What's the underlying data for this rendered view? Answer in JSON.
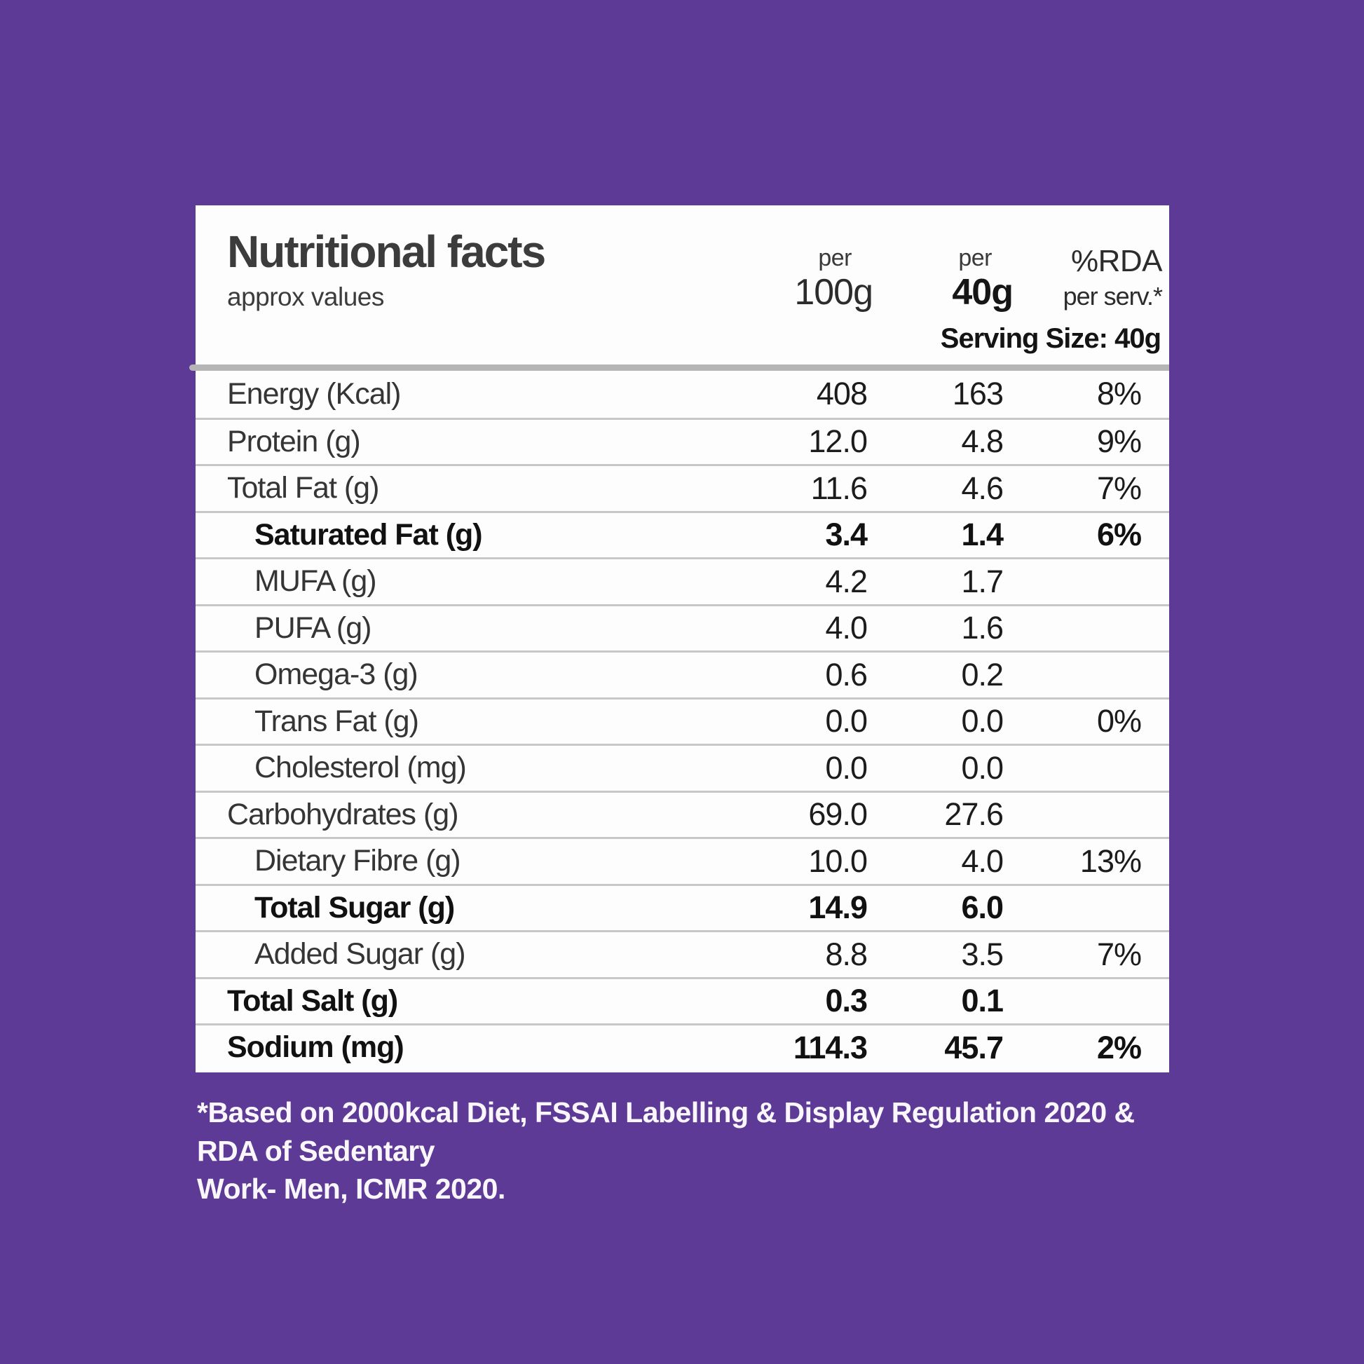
{
  "colors": {
    "background_purple": "#5d3a96",
    "card_white": "#fdfdfd",
    "thin_divider_gray": "#c7c7c7",
    "thick_divider_gray": "#b5b5b5",
    "text_dark_gray": "#3c3c3c",
    "text_black": "#111111",
    "footer_white": "#f9f7fc"
  },
  "header": {
    "title": "Nutritional facts",
    "subtitle": "approx values",
    "columns": [
      {
        "line1": "per",
        "line2": "100g"
      },
      {
        "line1": "per",
        "line2": "40g"
      },
      {
        "line1": "%RDA",
        "line2": "per serv.*"
      }
    ],
    "serving_size": "Serving Size: 40g"
  },
  "table": {
    "rows": [
      {
        "label": "Energy (Kcal)",
        "per_100g": "408",
        "per_40g": "163",
        "rda": "8%",
        "emphasis": false,
        "indent": false
      },
      {
        "label": "Protein (g)",
        "per_100g": "12.0",
        "per_40g": "4.8",
        "rda": "9%",
        "emphasis": false,
        "indent": false
      },
      {
        "label": "Total Fat (g)",
        "per_100g": "11.6",
        "per_40g": "4.6",
        "rda": "7%",
        "emphasis": false,
        "indent": false
      },
      {
        "label": "Saturated Fat (g)",
        "per_100g": "3.4",
        "per_40g": "1.4",
        "rda": "6%",
        "emphasis": true,
        "indent": true
      },
      {
        "label": "MUFA (g)",
        "per_100g": "4.2",
        "per_40g": "1.7",
        "rda": "",
        "emphasis": false,
        "indent": true
      },
      {
        "label": "PUFA (g)",
        "per_100g": "4.0",
        "per_40g": "1.6",
        "rda": "",
        "emphasis": false,
        "indent": true
      },
      {
        "label": "Omega-3 (g)",
        "per_100g": "0.6",
        "per_40g": "0.2",
        "rda": "",
        "emphasis": false,
        "indent": true
      },
      {
        "label": "Trans Fat (g)",
        "per_100g": "0.0",
        "per_40g": "0.0",
        "rda": "0%",
        "emphasis": false,
        "indent": true
      },
      {
        "label": "Cholesterol (mg)",
        "per_100g": "0.0",
        "per_40g": "0.0",
        "rda": "",
        "emphasis": false,
        "indent": true
      },
      {
        "label": "Carbohydrates (g)",
        "per_100g": "69.0",
        "per_40g": "27.6",
        "rda": "",
        "emphasis": false,
        "indent": false
      },
      {
        "label": "Dietary Fibre (g)",
        "per_100g": "10.0",
        "per_40g": "4.0",
        "rda": "13%",
        "emphasis": false,
        "indent": true
      },
      {
        "label": "Total Sugar (g)",
        "per_100g": "14.9",
        "per_40g": "6.0",
        "rda": "",
        "emphasis": true,
        "indent": true
      },
      {
        "label": "Added Sugar (g)",
        "per_100g": "8.8",
        "per_40g": "3.5",
        "rda": "7%",
        "emphasis": false,
        "indent": true
      },
      {
        "label": "Total Salt (g)",
        "per_100g": "0.3",
        "per_40g": "0.1",
        "rda": "",
        "emphasis": true,
        "indent": false
      },
      {
        "label": "Sodium (mg)",
        "per_100g": "114.3",
        "per_40g": "45.7",
        "rda": "2%",
        "emphasis": true,
        "indent": false
      }
    ]
  },
  "footer": {
    "note_line1": "*Based on 2000kcal Diet, FSSAI Labelling & Display Regulation 2020 & RDA of Sedentary",
    "note_line2": "Work- Men, ICMR 2020."
  }
}
